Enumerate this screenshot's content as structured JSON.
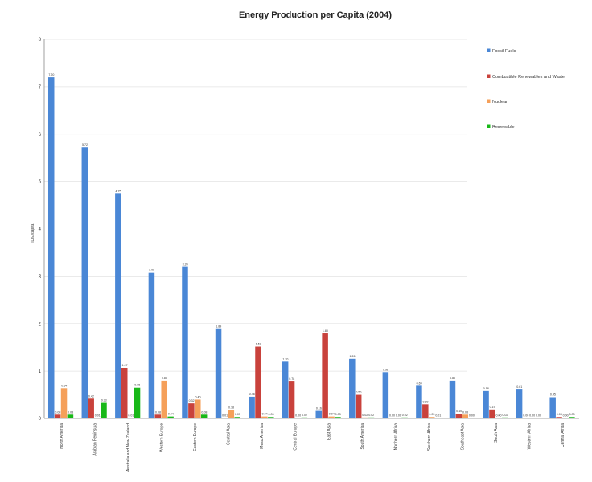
{
  "chart_data": {
    "type": "bar",
    "title": "Energy Production per Capita (2004)",
    "ylabel": "TOE/capita",
    "xlabel": "",
    "ylim": [
      0,
      8
    ],
    "yticks": [
      "0",
      "1",
      "2",
      "3",
      "4",
      "5",
      "6",
      "7",
      "8"
    ],
    "grid": true,
    "legend_position": "right",
    "categories": [
      "North America",
      "Arabian Peninsula",
      "Australia and New Zealand",
      "Western Europe",
      "Eastern Europe",
      "Central Asia",
      "Meso America",
      "Central Europe",
      "East Asia",
      "South America",
      "Northern Africa",
      "Southern Africa",
      "Southeast Asia",
      "South Asia",
      "Western Africa",
      "Central Africa"
    ],
    "series": [
      {
        "name": "Fossil Fuels",
        "color": "#4a87d6",
        "values": [
          7.2,
          5.72,
          4.75,
          3.08,
          3.2,
          1.89,
          0.46,
          1.2,
          0.16,
          1.26,
          0.98,
          0.69,
          0.8,
          0.58,
          0.61,
          0.45
        ],
        "labels": [
          "7.20",
          "5.72",
          "4.75",
          "3.08",
          "3.20",
          "1.89",
          "0.46",
          "1.20",
          "0.16",
          "1.26",
          "0.98",
          "0.69",
          "0.80",
          "0.58",
          "0.61",
          "0.45"
        ]
      },
      {
        "name": "Combustible Renewables and Waste",
        "color": "#c9423c",
        "values": [
          0.08,
          0.42,
          1.07,
          0.08,
          0.32,
          0.01,
          1.52,
          0.78,
          1.8,
          0.5,
          0.0,
          0.3,
          0.1,
          0.19,
          0.0,
          0.03
        ],
        "labels": [
          "0.08",
          "0.42",
          "1.07",
          "0.08",
          "0.32",
          "0.01",
          "1.52",
          "0.78",
          "1.80",
          "0.50",
          "0.00",
          "0.30",
          "0.10",
          "0.19",
          "0.00",
          "0.03"
        ]
      },
      {
        "name": "Nuclear",
        "color": "#f5a05a",
        "values": [
          0.64,
          0.01,
          0.01,
          0.8,
          0.4,
          0.18,
          0.04,
          0.0,
          0.04,
          0.02,
          0.0,
          0.03,
          0.08,
          0.0,
          0.0,
          0.0
        ],
        "labels": [
          "0.64",
          "0.01",
          "0.01",
          "0.80",
          "0.40",
          "0.18",
          "0.04",
          "0.00",
          "0.04",
          "0.02",
          "0.00",
          "0.03",
          "0.08",
          "0.00",
          "0.00",
          "0.00"
        ]
      },
      {
        "name": "Renewable",
        "color": "#18b818",
        "values": [
          0.08,
          0.33,
          0.65,
          0.04,
          0.08,
          0.03,
          0.03,
          0.02,
          0.03,
          0.02,
          0.02,
          0.01,
          0.0,
          0.02,
          0.0,
          0.03
        ],
        "labels": [
          "0.08",
          "0.33",
          "0.65",
          "0.04",
          "0.08",
          "0.03",
          "0.03",
          "0.02",
          "0.03",
          "0.02",
          "0.02",
          "0.01",
          "0.00",
          "0.02",
          "0.00",
          "0.03"
        ]
      }
    ]
  }
}
